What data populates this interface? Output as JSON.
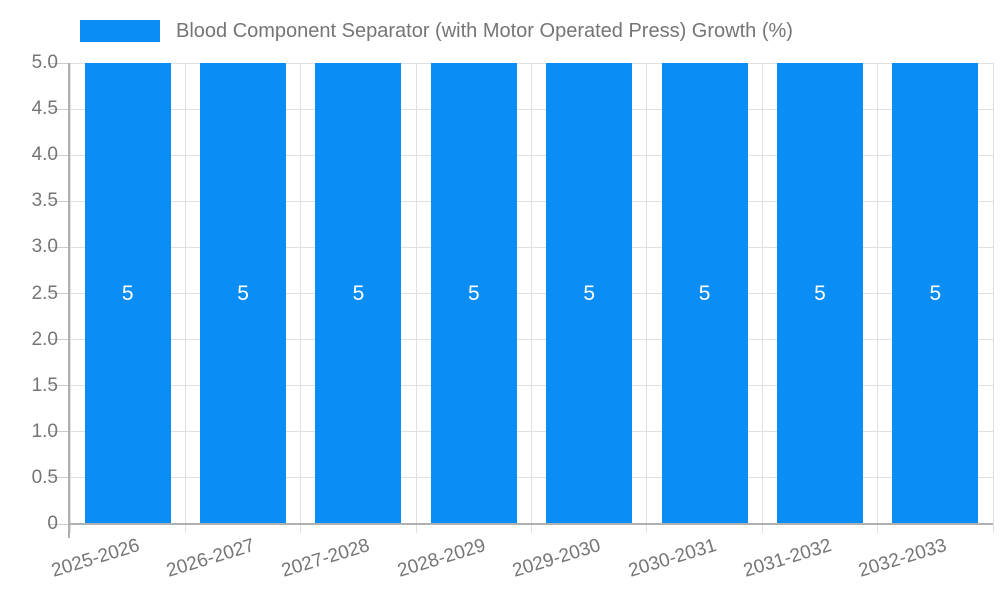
{
  "chart_data": {
    "type": "bar",
    "title": "Blood Component Separator (with Motor Operated Press) Growth (%)",
    "categories": [
      "2025-2026",
      "2026-2027",
      "2027-2028",
      "2028-2029",
      "2029-2030",
      "2030-2031",
      "2031-2032",
      "2032-2033"
    ],
    "values": [
      5,
      5,
      5,
      5,
      5,
      5,
      5,
      5
    ],
    "bar_labels": [
      "5",
      "5",
      "5",
      "5",
      "5",
      "5",
      "5",
      "5"
    ],
    "xlabel": "",
    "ylabel": "",
    "ylim": [
      0,
      5
    ],
    "y_ticks": [
      {
        "value": 5,
        "label": "5.0"
      },
      {
        "value": 4.5,
        "label": "4.5"
      },
      {
        "value": 4,
        "label": "4.0"
      },
      {
        "value": 3.5,
        "label": "3.5"
      },
      {
        "value": 3,
        "label": "3.0"
      },
      {
        "value": 2.5,
        "label": "2.5"
      },
      {
        "value": 2,
        "label": "2.0"
      },
      {
        "value": 1.5,
        "label": "1.5"
      },
      {
        "value": 1,
        "label": "1.0"
      },
      {
        "value": 0.5,
        "label": "0.5"
      },
      {
        "value": 0,
        "label": "0"
      }
    ],
    "grid": true,
    "legend_position": "top",
    "colors": {
      "bar": "#0a8ef5",
      "text": "#757575",
      "bar_label": "#ffffff",
      "gridline": "#e0e0e0",
      "axis": "#b0b0b0",
      "tick": "#cccccc"
    }
  }
}
